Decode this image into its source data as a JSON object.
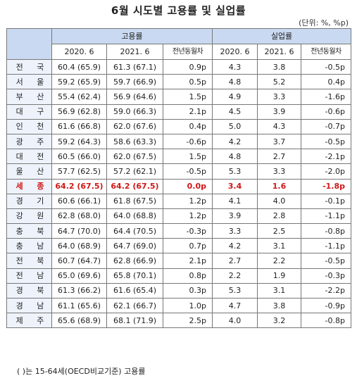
{
  "title": "6월 시도별 고용률 및 실업률",
  "unit": "(단위: %, %p)",
  "header": {
    "employment": "고용률",
    "unemployment": "실업률",
    "col_2020": "2020. 6",
    "col_2021": "2021. 6",
    "col_change": "전년동월차"
  },
  "rows": [
    {
      "region": "전 국",
      "e2020": "60.4 (65.9)",
      "e2021": "61.3 (67.1)",
      "echg": "0.9p",
      "u2020": "4.3",
      "u2021": "3.8",
      "uchg": "-0.5p"
    },
    {
      "region": "서 울",
      "e2020": "59.2 (65.9)",
      "e2021": "59.7 (66.9)",
      "echg": "0.5p",
      "u2020": "4.8",
      "u2021": "5.2",
      "uchg": "0.4p"
    },
    {
      "region": "부 산",
      "e2020": "55.4 (62.4)",
      "e2021": "56.9 (64.6)",
      "echg": "1.5p",
      "u2020": "4.9",
      "u2021": "3.3",
      "uchg": "-1.6p"
    },
    {
      "region": "대 구",
      "e2020": "56.9 (62.8)",
      "e2021": "59.0 (66.3)",
      "echg": "2.1p",
      "u2020": "4.5",
      "u2021": "3.9",
      "uchg": "-0.6p"
    },
    {
      "region": "인 천",
      "e2020": "61.6 (66.8)",
      "e2021": "62.0 (67.6)",
      "echg": "0.4p",
      "u2020": "5.0",
      "u2021": "4.3",
      "uchg": "-0.7p"
    },
    {
      "region": "광 주",
      "e2020": "59.2 (64.3)",
      "e2021": "58.6 (63.3)",
      "echg": "-0.6p",
      "u2020": "4.2",
      "u2021": "3.7",
      "uchg": "-0.5p"
    },
    {
      "region": "대 전",
      "e2020": "60.5 (66.0)",
      "e2021": "62.0 (67.5)",
      "echg": "1.5p",
      "u2020": "4.8",
      "u2021": "2.7",
      "uchg": "-2.1p"
    },
    {
      "region": "울 산",
      "e2020": "57.7 (62.5)",
      "e2021": "57.2 (62.1)",
      "echg": "-0.5p",
      "u2020": "5.3",
      "u2021": "3.3",
      "uchg": "-2.0p"
    },
    {
      "region": "세 종",
      "e2020": "64.2 (67.5)",
      "e2021": "64.2 (67.5)",
      "echg": "0.0p",
      "u2020": "3.4",
      "u2021": "1.6",
      "uchg": "-1.8p",
      "highlight": true
    },
    {
      "region": "경 기",
      "e2020": "60.6 (66.1)",
      "e2021": "61.8 (67.5)",
      "echg": "1.2p",
      "u2020": "4.1",
      "u2021": "4.0",
      "uchg": "-0.1p"
    },
    {
      "region": "강 원",
      "e2020": "62.8 (68.0)",
      "e2021": "64.0 (68.8)",
      "echg": "1.2p",
      "u2020": "3.9",
      "u2021": "2.8",
      "uchg": "-1.1p"
    },
    {
      "region": "충 북",
      "e2020": "64.7 (70.0)",
      "e2021": "64.4 (70.5)",
      "echg": "-0.3p",
      "u2020": "3.3",
      "u2021": "2.5",
      "uchg": "-0.8p"
    },
    {
      "region": "충 남",
      "e2020": "64.0 (68.9)",
      "e2021": "64.7 (69.0)",
      "echg": "0.7p",
      "u2020": "4.2",
      "u2021": "3.1",
      "uchg": "-1.1p"
    },
    {
      "region": "전 북",
      "e2020": "60.7 (64.7)",
      "e2021": "62.8 (66.9)",
      "echg": "2.1p",
      "u2020": "2.7",
      "u2021": "2.2",
      "uchg": "-0.5p"
    },
    {
      "region": "전 남",
      "e2020": "65.0 (69.6)",
      "e2021": "65.8 (70.1)",
      "echg": "0.8p",
      "u2020": "2.2",
      "u2021": "1.9",
      "uchg": "-0.3p"
    },
    {
      "region": "경 북",
      "e2020": "61.3 (66.2)",
      "e2021": "61.6 (65.4)",
      "echg": "0.3p",
      "u2020": "5.3",
      "u2021": "3.1",
      "uchg": "-2.2p"
    },
    {
      "region": "경 남",
      "e2020": "61.1 (65.6)",
      "e2021": "62.1 (66.7)",
      "echg": "1.0p",
      "u2020": "4.7",
      "u2021": "3.8",
      "uchg": "-0.9p"
    },
    {
      "region": "제 주",
      "e2020": "65.6 (68.9)",
      "e2021": "68.1 (71.9)",
      "echg": "2.5p",
      "u2020": "4.0",
      "u2021": "3.2",
      "uchg": "-0.8p"
    }
  ],
  "note": "( )는 15-64세(OECD비교기준) 고용률",
  "colors": {
    "header_bg": "#c9d9f1",
    "region_bg": "#eef3fb",
    "highlight": "#d01717"
  }
}
